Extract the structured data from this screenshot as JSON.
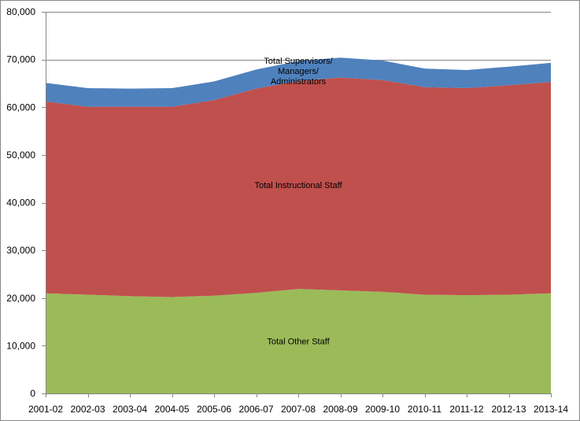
{
  "chart_data": {
    "type": "area",
    "stacked": true,
    "title": "",
    "xlabel": "",
    "ylabel": "",
    "ylim": [
      0,
      80000
    ],
    "yticks": [
      0,
      10000,
      20000,
      30000,
      40000,
      50000,
      60000,
      70000,
      80000
    ],
    "ytick_labels": [
      "0",
      "10,000",
      "20,000",
      "30,000",
      "40,000",
      "50,000",
      "60,000",
      "70,000",
      "80,000"
    ],
    "grid": true,
    "legend": "none",
    "categories": [
      "2001-02",
      "2002-03",
      "2003-04",
      "2004-05",
      "2005-06",
      "2006-07",
      "2007-08",
      "2008-09",
      "2009-10",
      "2010-11",
      "2011-12",
      "2012-13",
      "2013-14"
    ],
    "series": [
      {
        "name": "Total Other Staff",
        "label_lines": [
          "Total Other Staff"
        ],
        "color": "#9BBB59",
        "values": [
          21000,
          20700,
          20400,
          20200,
          20500,
          21100,
          21900,
          21600,
          21300,
          20700,
          20600,
          20700,
          21000
        ]
      },
      {
        "name": "Total Instructional Staff",
        "label_lines": [
          "Total Instructional Staff"
        ],
        "color": "#C0504D",
        "values": [
          40200,
          39400,
          39700,
          39900,
          41000,
          42800,
          43600,
          44600,
          44400,
          43500,
          43400,
          43900,
          44300
        ]
      },
      {
        "name": "Total Supervisors/ Managers/ Administrators",
        "label_lines": [
          "Total Supervisors/",
          "Managers/",
          "Administrators"
        ],
        "color": "#4F81BD",
        "values": [
          3900,
          3900,
          3800,
          3900,
          3900,
          4000,
          4200,
          4200,
          4100,
          3900,
          3800,
          3900,
          4000
        ]
      }
    ]
  }
}
